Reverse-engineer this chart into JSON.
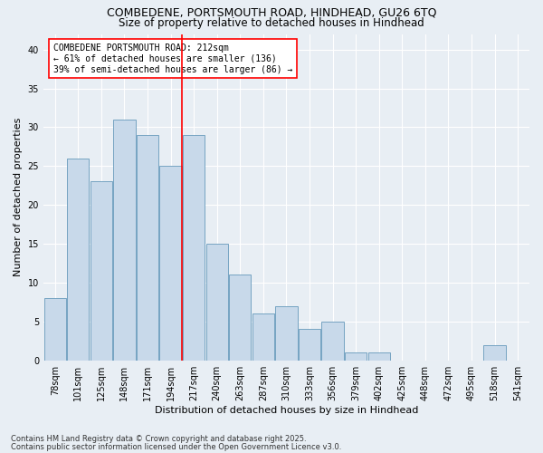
{
  "title1": "COMBEDENE, PORTSMOUTH ROAD, HINDHEAD, GU26 6TQ",
  "title2": "Size of property relative to detached houses in Hindhead",
  "xlabel": "Distribution of detached houses by size in Hindhead",
  "ylabel": "Number of detached properties",
  "categories": [
    "78sqm",
    "101sqm",
    "125sqm",
    "148sqm",
    "171sqm",
    "194sqm",
    "217sqm",
    "240sqm",
    "263sqm",
    "287sqm",
    "310sqm",
    "333sqm",
    "356sqm",
    "379sqm",
    "402sqm",
    "425sqm",
    "448sqm",
    "472sqm",
    "495sqm",
    "518sqm",
    "541sqm"
  ],
  "values": [
    8,
    26,
    23,
    31,
    29,
    25,
    29,
    15,
    11,
    6,
    7,
    4,
    5,
    1,
    1,
    0,
    0,
    0,
    0,
    2,
    0
  ],
  "bar_color": "#c8d9ea",
  "bar_edge_color": "#6699bb",
  "red_line_index": 6,
  "annotation_text": "COMBEDENE PORTSMOUTH ROAD: 212sqm\n← 61% of detached houses are smaller (136)\n39% of semi-detached houses are larger (86) →",
  "footnote1": "Contains HM Land Registry data © Crown copyright and database right 2025.",
  "footnote2": "Contains public sector information licensed under the Open Government Licence v3.0.",
  "ylim": [
    0,
    42
  ],
  "yticks": [
    0,
    5,
    10,
    15,
    20,
    25,
    30,
    35,
    40
  ],
  "background_color": "#e8eef4",
  "plot_bg_color": "#e8eef4",
  "grid_color": "#ffffff",
  "title_fontsize": 9,
  "subtitle_fontsize": 8.5,
  "axis_label_fontsize": 8,
  "tick_fontsize": 7,
  "annotation_fontsize": 7,
  "footnote_fontsize": 6
}
